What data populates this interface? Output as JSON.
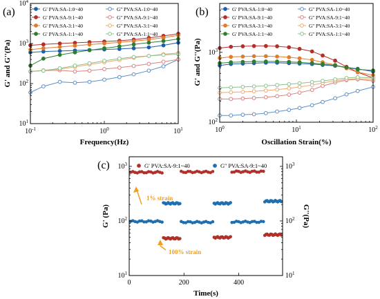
{
  "chart_data": [
    {
      "panel": "(a)",
      "type": "scatter",
      "xlabel": "Frequency(Hz)",
      "ylabel": "G' and G''(Pa)",
      "xscale": "log",
      "yscale": "log",
      "xlim": [
        0.1,
        10
      ],
      "ylim": [
        10,
        10000
      ],
      "xticks": [
        "10^-1",
        "10^0",
        "10^1"
      ],
      "yticks": [
        "10^1",
        "10^2",
        "10^3",
        "10^4"
      ],
      "grid": false,
      "legend_position": "top",
      "x": [
        0.1,
        0.15,
        0.25,
        0.4,
        0.63,
        1.0,
        1.6,
        2.5,
        4.0,
        6.3,
        10.0
      ],
      "series": [
        {
          "name": "G' PVA:SA-1:0~40",
          "marker": "filled",
          "color": "#1f5fa8",
          "values": [
            600,
            630,
            650,
            670,
            690,
            710,
            730,
            760,
            800,
            900,
            1050
          ]
        },
        {
          "name": "G' PVA:SA-9:1~40",
          "marker": "filled",
          "color": "#b0302a",
          "values": [
            900,
            950,
            1000,
            1040,
            1080,
            1120,
            1170,
            1250,
            1380,
            1550,
            1750
          ]
        },
        {
          "name": "G' PVA:SA-3:1~40",
          "marker": "filled",
          "color": "#e07b2a",
          "values": [
            700,
            760,
            820,
            880,
            940,
            1000,
            1070,
            1150,
            1250,
            1400,
            1600
          ]
        },
        {
          "name": "G' PVA:SA-1:1~40",
          "marker": "filled",
          "color": "#2e7d32",
          "values": [
            280,
            420,
            520,
            600,
            680,
            760,
            850,
            950,
            1050,
            1150,
            1300
          ]
        },
        {
          "name": "G'' PVA:SA-1:0~40",
          "marker": "open",
          "color": "#5b8fc7",
          "values": [
            60,
            85,
            110,
            105,
            110,
            125,
            145,
            170,
            210,
            270,
            400
          ]
        },
        {
          "name": "G'' PVA:SA-9:1~40",
          "marker": "open",
          "color": "#d98080",
          "values": [
            200,
            210,
            215,
            200,
            210,
            230,
            250,
            275,
            310,
            350,
            400
          ]
        },
        {
          "name": "G'' PVA:SA-3:1~40",
          "marker": "open",
          "color": "#f0a868",
          "values": [
            200,
            215,
            230,
            260,
            300,
            340,
            390,
            440,
            490,
            540,
            580
          ]
        },
        {
          "name": "G'' PVA:SA-1:1~40",
          "marker": "open",
          "color": "#8cc08c",
          "values": [
            200,
            210,
            240,
            280,
            320,
            370,
            420,
            460,
            490,
            520,
            540
          ]
        }
      ]
    },
    {
      "panel": "(b)",
      "type": "scatter",
      "xlabel": "Oscillation Strain(%)",
      "ylabel": "G' and G''(Pa)",
      "xscale": "log",
      "yscale": "log",
      "xlim": [
        1,
        100
      ],
      "ylim": [
        100,
        5000
      ],
      "xticks": [
        "10^0",
        "10^1",
        "10^2"
      ],
      "yticks": [
        "10^2",
        "10^3"
      ],
      "grid": false,
      "legend_position": "top",
      "x": [
        1,
        1.4,
        2,
        2.8,
        4,
        5.6,
        8,
        11,
        16,
        22,
        32,
        45,
        63,
        100
      ],
      "series": [
        {
          "name": "G' PVA:SA-1:0~40",
          "marker": "filled",
          "color": "#1f5fa8",
          "values": [
            650,
            680,
            690,
            700,
            710,
            710,
            700,
            690,
            680,
            660,
            640,
            610,
            580,
            530
          ]
        },
        {
          "name": "G' PVA:SA-9:1~40",
          "marker": "filled",
          "color": "#b0302a",
          "values": [
            1150,
            1200,
            1220,
            1230,
            1230,
            1220,
            1180,
            1120,
            1030,
            900,
            760,
            620,
            520,
            430
          ]
        },
        {
          "name": "G' PVA:SA-3:1~40",
          "marker": "filled",
          "color": "#e07b2a",
          "values": [
            830,
            860,
            870,
            880,
            880,
            870,
            850,
            820,
            780,
            720,
            660,
            590,
            520,
            470
          ]
        },
        {
          "name": "G' PVA:SA-1:1~40",
          "marker": "filled",
          "color": "#2e7d32",
          "values": [
            700,
            720,
            730,
            740,
            740,
            740,
            730,
            720,
            700,
            680,
            650,
            610,
            570,
            550
          ]
        },
        {
          "name": "G'' PVA:SA-1:0~40",
          "marker": "open",
          "color": "#5b8fc7",
          "values": [
            125,
            125,
            128,
            130,
            135,
            142,
            150,
            160,
            175,
            195,
            220,
            250,
            280,
            320
          ]
        },
        {
          "name": "G'' PVA:SA-9:1~40",
          "marker": "open",
          "color": "#d98080",
          "values": [
            215,
            215,
            218,
            222,
            228,
            236,
            248,
            265,
            290,
            330,
            370,
            400,
            410,
            390
          ]
        },
        {
          "name": "G'' PVA:SA-3:1~40",
          "marker": "open",
          "color": "#f0a868",
          "values": [
            265,
            268,
            272,
            277,
            284,
            293,
            305,
            320,
            340,
            365,
            390,
            410,
            420,
            410
          ]
        },
        {
          "name": "G'' PVA:SA-1:1~40",
          "marker": "open",
          "color": "#8cc08c",
          "values": [
            310,
            315,
            320,
            325,
            332,
            340,
            350,
            360,
            375,
            390,
            410,
            430,
            440,
            430
          ]
        }
      ]
    },
    {
      "panel": "(c)",
      "type": "scatter",
      "xlabel": "Time(s)",
      "ylabel": "G' (Pa)",
      "ylabel_right": "G''(Pa)",
      "yscale": "log",
      "xlim": [
        0,
        560
      ],
      "ylim": [
        10,
        1500
      ],
      "xticks": [
        0,
        200,
        400
      ],
      "yticks": [
        "10^1",
        "10^2",
        "10^3"
      ],
      "y2ticks": [
        "10^1",
        "10^2",
        "10^3"
      ],
      "grid": false,
      "legend_position": "top",
      "annotations": [
        "1% strain",
        "100% strain"
      ],
      "annotation_color": "#f0a020",
      "series": [
        {
          "name": "G' PVA:SA-9:1~40",
          "marker": "filled",
          "color": "#b0302a",
          "segments": [
            {
              "x": [
                5,
                120
              ],
              "value": 780
            },
            {
              "x": [
                125,
                185
              ],
              "value": 48
            },
            {
              "x": [
                190,
                305
              ],
              "value": 790
            },
            {
              "x": [
                310,
                370
              ],
              "value": 50
            },
            {
              "x": [
                375,
                490
              ],
              "value": 800
            },
            {
              "x": [
                495,
                555
              ],
              "value": 56
            }
          ]
        },
        {
          "name": "G'' PVA:SA-9:1~40",
          "marker": "filled",
          "color": "#1f6fb0",
          "segments": [
            {
              "x": [
                5,
                120
              ],
              "value": 98
            },
            {
              "x": [
                125,
                185
              ],
              "value": 210
            },
            {
              "x": [
                190,
                305
              ],
              "value": 95
            },
            {
              "x": [
                310,
                370
              ],
              "value": 210
            },
            {
              "x": [
                375,
                490
              ],
              "value": 96
            },
            {
              "x": [
                495,
                555
              ],
              "value": 230
            }
          ]
        }
      ]
    }
  ]
}
